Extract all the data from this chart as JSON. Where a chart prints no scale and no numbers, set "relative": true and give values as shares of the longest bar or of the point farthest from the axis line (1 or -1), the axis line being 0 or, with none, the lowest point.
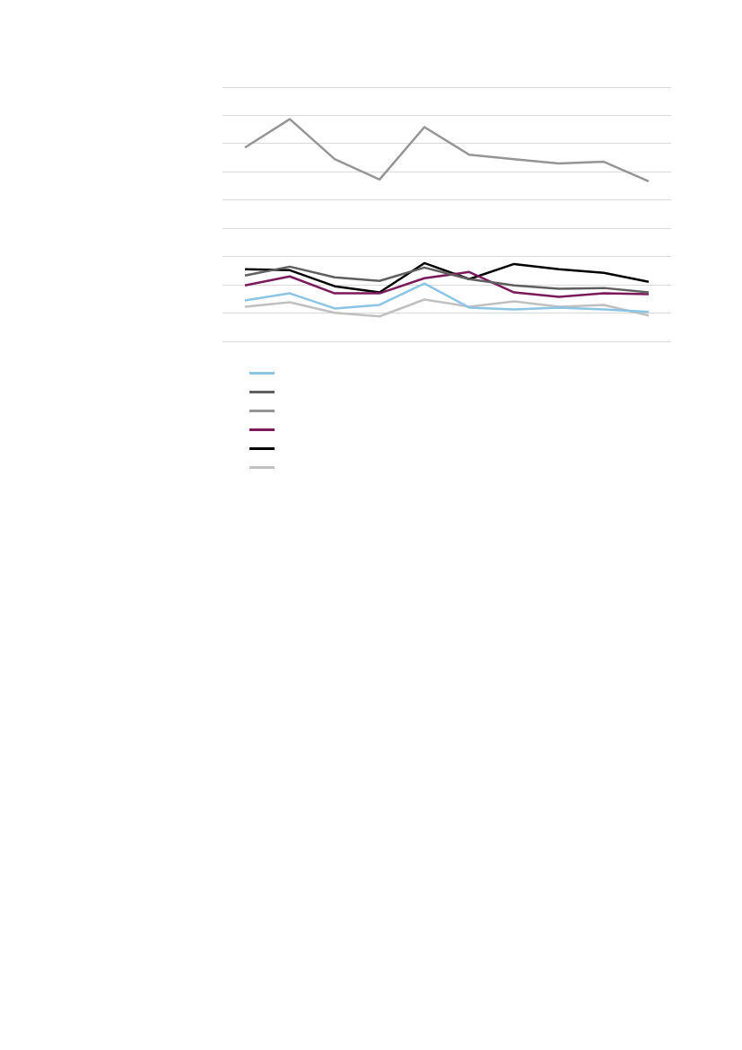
{
  "chart_data": {
    "type": "line",
    "relative": true,
    "grid": "y",
    "marker": "none",
    "line_style": "solid",
    "categories": [
      null,
      null,
      null,
      null,
      null,
      null,
      null,
      null,
      null,
      null
    ],
    "series": [
      {
        "color": "#8bc4e4",
        "values": [
          0.184,
          0.216,
          0.148,
          0.164,
          0.26,
          0.152,
          0.144,
          0.152,
          0.144,
          0.132
        ]
      },
      {
        "color": "#5f5f5f",
        "values": [
          0.296,
          0.336,
          0.288,
          0.272,
          0.332,
          0.28,
          0.252,
          0.236,
          0.24,
          0.22
        ]
      },
      {
        "color": "#959595",
        "values": [
          0.872,
          1,
          0.82,
          0.728,
          0.964,
          0.84,
          0.82,
          0.8,
          0.808,
          0.72
        ]
      },
      {
        "color": "#7b1a5a",
        "values": [
          0.252,
          0.292,
          0.216,
          0.216,
          0.284,
          0.312,
          0.22,
          0.2,
          0.216,
          0.212
        ]
      },
      {
        "color": "#000000",
        "values": [
          0.324,
          0.32,
          0.248,
          0.22,
          0.352,
          0.28,
          0.348,
          0.324,
          0.308,
          0.268
        ]
      },
      {
        "color": "#c0c0c0",
        "values": [
          0.156,
          0.176,
          0.128,
          0.112,
          0.188,
          0.156,
          0.18,
          0.156,
          0.164,
          0.116
        ]
      }
    ]
  }
}
